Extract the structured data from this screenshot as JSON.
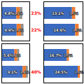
{
  "chart_data": [
    {
      "type": "bar",
      "orientation": "horizontal",
      "stacked": true,
      "categories": [
        null,
        null
      ],
      "xlim": [
        0,
        9
      ],
      "tick_labels": false,
      "data_labels": true,
      "series": [
        {
          "color": "#4472c4",
          "values": [
            4.8,
            4.9
          ],
          "value_labels": [
            "4.8%",
            "4.9%"
          ]
        },
        {
          "color": "#ed7d31",
          "values": [
            1.1,
            1.4
          ],
          "value_labels": [
            "1.1%",
            "1.4%"
          ]
        },
        {
          "color": "#909090",
          "values": [
            0.8,
            0.8
          ]
        }
      ],
      "annotations": [
        {
          "text": "23%",
          "color": "#ff0000"
        },
        {
          "text": "22%",
          "color": "#ff0000"
        }
      ]
    },
    {
      "type": "bar",
      "orientation": "horizontal",
      "stacked": true,
      "categories": [
        null,
        null
      ],
      "xlim": [
        0,
        18
      ],
      "tick_labels": false,
      "data_labels": true,
      "series": [
        {
          "color": "#3a6abf",
          "values": [
            13.1,
            14.6
          ],
          "value_labels": [
            "13.1%",
            "14.6%"
          ]
        },
        {
          "color": "#ed7d31",
          "values": [
            1.5,
            1.6
          ],
          "value_labels": [
            "1.5%",
            "1.6%"
          ]
        }
      ]
    },
    {
      "type": "bar",
      "orientation": "horizontal",
      "stacked": true,
      "categories": [
        null,
        null
      ],
      "xlim": [
        0,
        12
      ],
      "tick_labels": false,
      "data_labels": true,
      "series": [
        {
          "color": "#4472c4",
          "values": [
            5.6,
            9.1
          ],
          "value_labels": [
            "5.6%",
            "9.1%"
          ]
        },
        {
          "color": "#ed7d31",
          "values": [
            1.2,
            1.4
          ],
          "value_labels": [
            "1.2%",
            "1.4%"
          ]
        },
        {
          "color": "#909090",
          "values": [
            0.8,
            0.8
          ]
        }
      ],
      "annotations": [
        null,
        {
          "text": "40%",
          "color": "#ff0000"
        }
      ]
    },
    {
      "type": "bar",
      "orientation": "horizontal",
      "stacked": true,
      "categories": [
        null,
        null
      ],
      "xlim": [
        0,
        28
      ],
      "tick_labels": false,
      "data_labels": true,
      "series": [
        {
          "color": "#3a6abf",
          "values": [
            16.7,
            24.5
          ],
          "value_labels": [
            "16.7%",
            "24.5%"
          ]
        },
        {
          "color": "#ed7d31",
          "values": [
            1.5,
            1.6
          ],
          "value_labels": [
            "1.5%",
            "1.6%"
          ]
        }
      ]
    }
  ]
}
